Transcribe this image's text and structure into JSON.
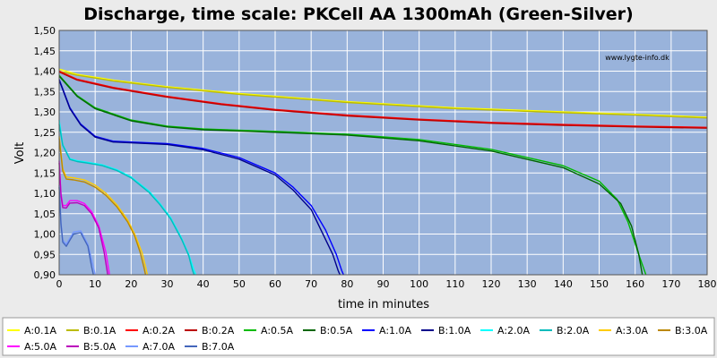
{
  "chart_data": {
    "type": "line",
    "title": "Discharge, time scale: PKCell AA 1300mAh (Green-Silver)",
    "xlabel": "time in minutes",
    "ylabel": "Volt",
    "watermark": "www.lygte-info.dk",
    "xlim": [
      0,
      180
    ],
    "ylim": [
      0.9,
      1.5
    ],
    "xticks": [
      "0",
      "10",
      "20",
      "30",
      "40",
      "50",
      "60",
      "70",
      "80",
      "90",
      "100",
      "110",
      "120",
      "130",
      "140",
      "150",
      "160",
      "170",
      "180"
    ],
    "yticks": [
      "0,90",
      "0,95",
      "1,00",
      "1,05",
      "1,10",
      "1,15",
      "1,20",
      "1,25",
      "1,30",
      "1,35",
      "1,40",
      "1,45",
      "1,50"
    ],
    "grid": true,
    "legend_position": "bottom",
    "series": [
      {
        "name": "A:0.1A",
        "color": "#ffff00",
        "x": [
          0,
          5,
          15,
          30,
          50,
          80,
          110,
          140,
          160,
          180
        ],
        "y": [
          1.405,
          1.392,
          1.378,
          1.362,
          1.345,
          1.325,
          1.31,
          1.3,
          1.294,
          1.287
        ]
      },
      {
        "name": "B:0.1A",
        "color": "#bbbb00",
        "x": [
          0,
          5,
          15,
          30,
          50,
          80,
          110,
          140,
          160,
          180
        ],
        "y": [
          1.4,
          1.39,
          1.376,
          1.36,
          1.343,
          1.323,
          1.308,
          1.298,
          1.292,
          1.285
        ]
      },
      {
        "name": "A:0.2A",
        "color": "#ff0000",
        "x": [
          0,
          5,
          15,
          30,
          45,
          60,
          80,
          100,
          120,
          140,
          160,
          180
        ],
        "y": [
          1.4,
          1.38,
          1.36,
          1.338,
          1.32,
          1.306,
          1.292,
          1.282,
          1.274,
          1.269,
          1.265,
          1.262
        ]
      },
      {
        "name": "B:0.2A",
        "color": "#bb0000",
        "x": [
          0,
          5,
          15,
          30,
          45,
          60,
          80,
          100,
          120,
          140,
          160,
          180
        ],
        "y": [
          1.398,
          1.378,
          1.358,
          1.336,
          1.318,
          1.304,
          1.29,
          1.28,
          1.272,
          1.267,
          1.263,
          1.26
        ]
      },
      {
        "name": "A:0.5A",
        "color": "#00bb00",
        "x": [
          0,
          5,
          10,
          20,
          30,
          40,
          60,
          80,
          100,
          120,
          140,
          150,
          155,
          158,
          161,
          163
        ],
        "y": [
          1.39,
          1.34,
          1.31,
          1.28,
          1.265,
          1.258,
          1.252,
          1.245,
          1.232,
          1.208,
          1.168,
          1.13,
          1.085,
          1.03,
          0.95,
          0.9
        ]
      },
      {
        "name": "B:0.5A",
        "color": "#006600",
        "x": [
          0,
          5,
          10,
          20,
          30,
          40,
          60,
          80,
          100,
          120,
          140,
          150,
          156,
          159,
          161,
          162
        ],
        "y": [
          1.388,
          1.338,
          1.308,
          1.278,
          1.263,
          1.256,
          1.25,
          1.243,
          1.229,
          1.204,
          1.163,
          1.123,
          1.075,
          1.02,
          0.95,
          0.9
        ]
      },
      {
        "name": "A:1.0A",
        "color": "#0000ff",
        "x": [
          0,
          3,
          6,
          10,
          15,
          20,
          30,
          40,
          50,
          60,
          65,
          70,
          74,
          77,
          78.5,
          79
        ],
        "y": [
          1.38,
          1.31,
          1.27,
          1.24,
          1.228,
          1.226,
          1.222,
          1.21,
          1.188,
          1.15,
          1.115,
          1.07,
          1.01,
          0.95,
          0.91,
          0.9
        ]
      },
      {
        "name": "B:1.0A",
        "color": "#00008b",
        "x": [
          0,
          3,
          6,
          10,
          15,
          20,
          30,
          40,
          50,
          60,
          65,
          70,
          73,
          76,
          77.5,
          78
        ],
        "y": [
          1.378,
          1.308,
          1.268,
          1.238,
          1.226,
          1.224,
          1.22,
          1.207,
          1.184,
          1.145,
          1.108,
          1.06,
          1.005,
          0.95,
          0.91,
          0.9
        ]
      },
      {
        "name": "A:2.0A",
        "color": "#00ffff",
        "x": [
          0,
          1,
          3,
          5,
          8,
          12,
          16,
          20,
          25,
          28,
          31,
          34,
          36,
          37.5,
          38
        ],
        "y": [
          1.28,
          1.22,
          1.185,
          1.18,
          1.176,
          1.17,
          1.158,
          1.14,
          1.105,
          1.075,
          1.04,
          0.99,
          0.95,
          0.91,
          0.9
        ]
      },
      {
        "name": "B:2.0A",
        "color": "#00bbbb",
        "x": [
          0,
          1,
          3,
          5,
          8,
          12,
          16,
          20,
          25,
          28,
          31,
          34,
          36,
          37,
          37.5
        ],
        "y": [
          1.27,
          1.218,
          1.183,
          1.178,
          1.174,
          1.168,
          1.156,
          1.138,
          1.102,
          1.072,
          1.037,
          0.987,
          0.947,
          0.912,
          0.9
        ]
      },
      {
        "name": "A:3.0A",
        "color": "#ffcc00",
        "x": [
          0,
          1,
          2,
          4,
          7,
          10,
          13,
          16,
          19,
          21,
          23,
          24,
          24.5
        ],
        "y": [
          1.24,
          1.16,
          1.14,
          1.138,
          1.133,
          1.12,
          1.1,
          1.072,
          1.035,
          1.0,
          0.955,
          0.92,
          0.9
        ]
      },
      {
        "name": "B:3.0A",
        "color": "#bb8800",
        "x": [
          0,
          1,
          2,
          4,
          7,
          10,
          13,
          16,
          19,
          21,
          22.5,
          23.5,
          24
        ],
        "y": [
          1.235,
          1.155,
          1.135,
          1.133,
          1.128,
          1.115,
          1.095,
          1.067,
          1.03,
          0.995,
          0.955,
          0.92,
          0.9
        ]
      },
      {
        "name": "A:5.0A",
        "color": "#ff00ff",
        "x": [
          0,
          0.5,
          1,
          2,
          3,
          5,
          7,
          9,
          11,
          13,
          14
        ],
        "y": [
          1.18,
          1.1,
          1.07,
          1.07,
          1.082,
          1.082,
          1.075,
          1.055,
          1.02,
          0.955,
          0.9
        ]
      },
      {
        "name": "B:5.0A",
        "color": "#bb00bb",
        "x": [
          0,
          0.5,
          1,
          2,
          3,
          5,
          7,
          9,
          11,
          12.5,
          13.5
        ],
        "y": [
          1.175,
          1.095,
          1.065,
          1.064,
          1.076,
          1.077,
          1.07,
          1.05,
          1.015,
          0.955,
          0.9
        ]
      },
      {
        "name": "A:7.0A",
        "color": "#7799ff",
        "x": [
          0,
          0.5,
          1,
          2,
          3,
          4,
          6,
          8,
          9.5,
          10
        ],
        "y": [
          1.12,
          1.03,
          0.985,
          0.975,
          0.99,
          1.005,
          1.008,
          0.975,
          0.92,
          0.9
        ]
      },
      {
        "name": "B:7.0A",
        "color": "#4466bb",
        "x": [
          0,
          0.5,
          1,
          2,
          3,
          4,
          6,
          8,
          9,
          9.5
        ],
        "y": [
          1.115,
          1.025,
          0.98,
          0.97,
          0.985,
          1.0,
          1.003,
          0.97,
          0.92,
          0.9
        ]
      }
    ]
  }
}
